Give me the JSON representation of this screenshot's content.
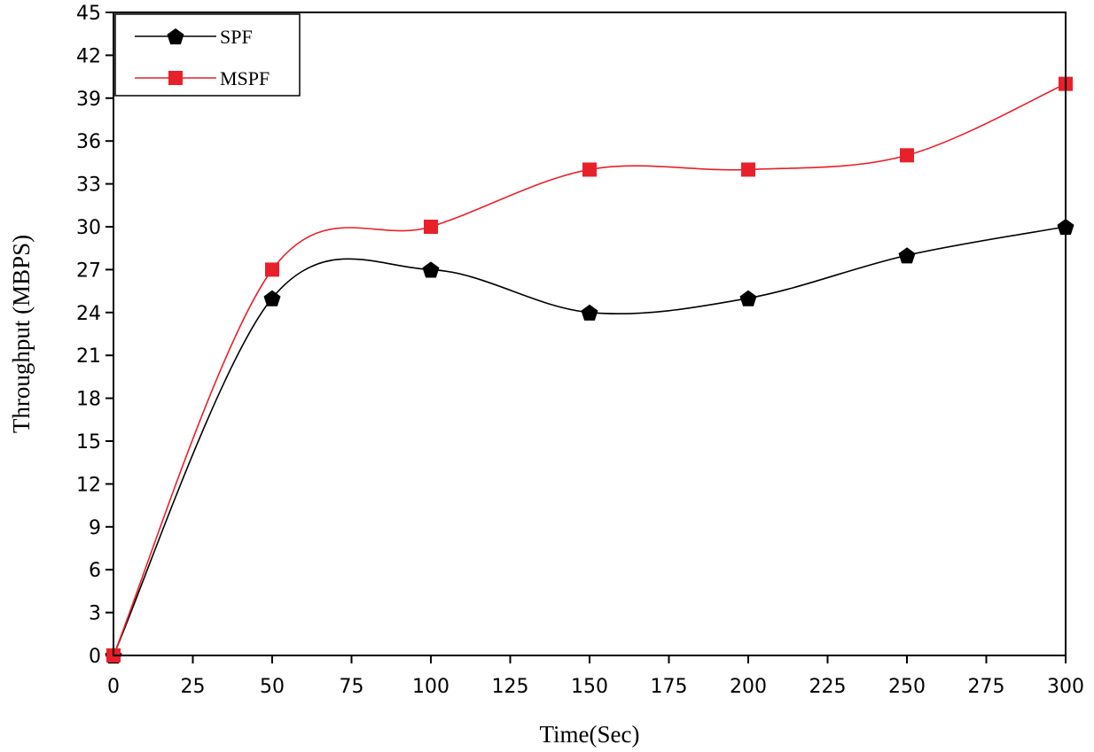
{
  "chart_data": {
    "type": "line",
    "title": "",
    "xlabel": "Time(Sec)",
    "ylabel": "Throughput (MBPS)",
    "xlim": [
      0,
      300
    ],
    "ylim": [
      0,
      45
    ],
    "xticks": [
      0,
      25,
      50,
      75,
      100,
      125,
      150,
      175,
      200,
      225,
      250,
      275,
      300
    ],
    "yticks": [
      0,
      3,
      6,
      9,
      12,
      15,
      18,
      21,
      24,
      27,
      30,
      33,
      36,
      39,
      42,
      45
    ],
    "grid": false,
    "legend_position": "top-left",
    "smooth": true,
    "series": [
      {
        "name": "SPF",
        "color": "#000000",
        "marker": "pentagon",
        "marker_color": "#000000",
        "x": [
          0,
          50,
          100,
          150,
          200,
          250,
          300
        ],
        "y": [
          0,
          25,
          27,
          24,
          25,
          28,
          30
        ]
      },
      {
        "name": "MSPF",
        "color": "#e8202a",
        "marker": "square",
        "marker_color": "#e8202a",
        "x": [
          0,
          50,
          100,
          150,
          200,
          250,
          300
        ],
        "y": [
          0,
          27,
          30,
          34,
          34,
          35,
          40
        ]
      }
    ]
  }
}
